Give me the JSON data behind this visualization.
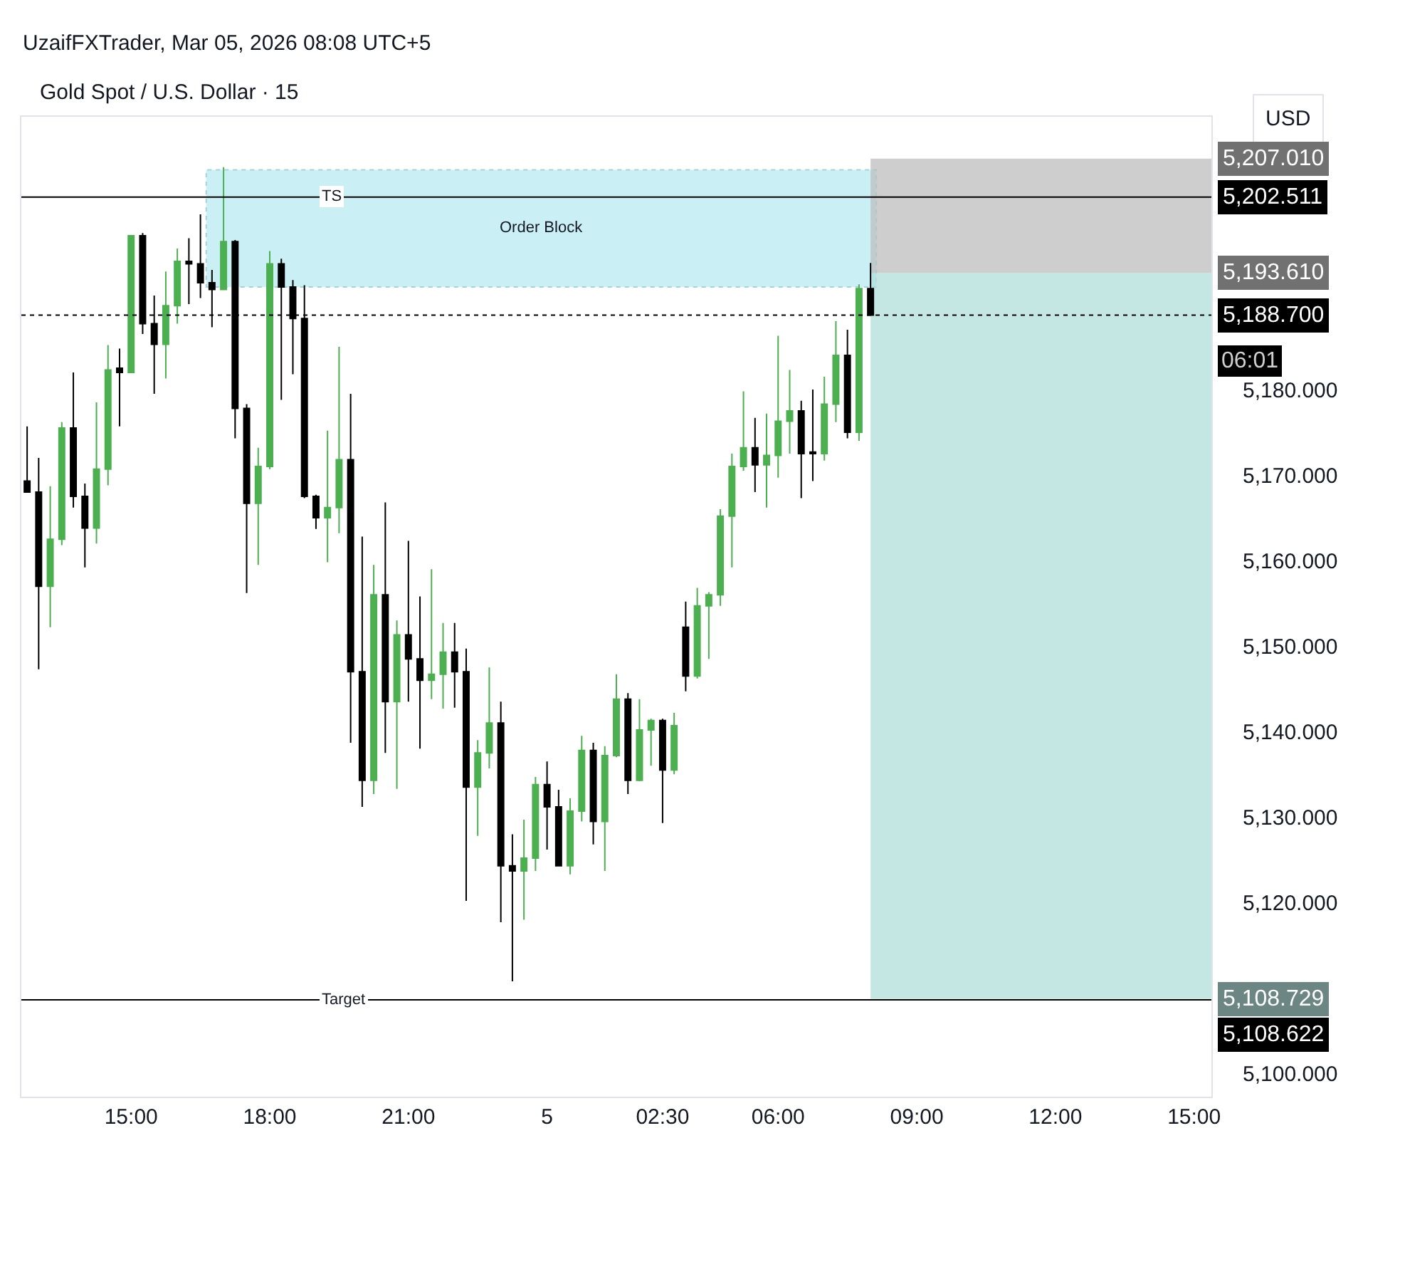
{
  "chart_data": {
    "type": "candlestick",
    "title": "Gold Spot / U.S. Dollar · 15",
    "annotations": [
      "UzaifFXTrader, Mar 05, 2026 08:08 UTC+5",
      "USD",
      "06:01",
      "5,207.010",
      "5,202.511",
      "5,193.610",
      "5,188.700",
      "5,108.729",
      "5,108.622"
    ],
    "categories": [
      null,
      null,
      null,
      null,
      null,
      null,
      null,
      null,
      null,
      "15:00",
      null,
      null,
      null,
      null,
      null,
      null,
      null,
      null,
      null,
      null,
      null,
      "18:00",
      null,
      null,
      null,
      null,
      null,
      null,
      null,
      null,
      null,
      null,
      null,
      "21:00",
      null,
      null,
      null,
      null,
      null,
      null,
      null,
      null,
      null,
      null,
      null,
      "5",
      null,
      null,
      null,
      null,
      null,
      null,
      null,
      null,
      null,
      "02:30",
      null,
      null,
      null,
      null,
      null,
      null,
      null,
      null,
      null,
      "06:00",
      null,
      null,
      null,
      null,
      null,
      null,
      null,
      null,
      null,
      null,
      null,
      "09:00",
      null,
      null,
      null,
      null,
      null,
      null,
      null,
      null,
      null,
      null,
      null,
      "12:00",
      null,
      null,
      null,
      null,
      null,
      null,
      null,
      null,
      null,
      null,
      null,
      "15:00",
      null
    ],
    "series": [
      {
        "color": "#4caf50",
        "ohlc": [
          null,
          null,
          [
            5157,
            5168.7,
            5152.2,
            5162.5
          ],
          [
            5162.5,
            5176.2,
            5161.8,
            5175.5
          ],
          null,
          null,
          [
            5163.8,
            5178.5,
            5162,
            5170.7
          ],
          [
            5170.7,
            5185.2,
            5168.8,
            5182.3
          ],
          null,
          [
            5182,
            5198,
            5182,
            5198
          ],
          null,
          null,
          [
            5185.3,
            5193.8,
            5181.3,
            5189.8
          ],
          [
            5189.8,
            5196.5,
            5187.7,
            5195
          ],
          null,
          null,
          null,
          [
            5191.7,
            5206,
            5191.7,
            5197.3
          ],
          null,
          null,
          [
            5166.7,
            5173.2,
            5159.5,
            5171
          ],
          [
            5171,
            5196.2,
            5170.7,
            5194.7
          ],
          null,
          null,
          null,
          null,
          [
            5165,
            5175.2,
            5159.8,
            5166.2
          ],
          [
            5166.2,
            5185,
            5163.2,
            5171.8
          ],
          null,
          null,
          [
            5134.3,
            5159.5,
            5132.7,
            5156
          ],
          null,
          [
            5143.5,
            5153,
            5133.3,
            5151.3
          ],
          null,
          null,
          [
            5146,
            5159,
            5143.8,
            5146.7
          ],
          [
            5146.7,
            5152.7,
            5142.7,
            5149.3
          ],
          null,
          null,
          [
            5133.5,
            5139,
            5127.8,
            5137.5
          ],
          [
            5137.5,
            5147.5,
            5135.7,
            5141
          ],
          null,
          null,
          [
            5123.7,
            5129.7,
            5118,
            5125.2
          ],
          [
            5125.2,
            5134.7,
            5123.7,
            5133.8
          ],
          null,
          null,
          [
            5124.3,
            5132.2,
            5123.3,
            5130.7
          ],
          [
            5130.7,
            5139.5,
            5129.5,
            5137.8
          ],
          null,
          [
            5129.5,
            5138.3,
            5123.7,
            5137.2
          ],
          [
            5137.2,
            5146.7,
            5137,
            5143.8
          ],
          null,
          [
            5134.3,
            5143.8,
            5134.2,
            5140.2
          ],
          [
            5140.2,
            5141.5,
            5136,
            5141.3
          ],
          null,
          [
            5135.5,
            5142.2,
            5135,
            5140.7
          ],
          null,
          [
            5146.5,
            5156.8,
            5146.2,
            5154.7
          ],
          [
            5154.7,
            5156.3,
            5148.5,
            5156
          ],
          [
            5156,
            5166,
            5154.7,
            5165.2
          ],
          [
            5165.2,
            5172.5,
            5159.2,
            5171
          ],
          [
            5171,
            5179.8,
            5170.5,
            5173.2
          ],
          null,
          [
            5171.2,
            5177.2,
            5166.2,
            5172.3
          ],
          [
            5172.3,
            5186.3,
            5169.7,
            5176.3
          ],
          [
            5176.3,
            5182.3,
            5172.5,
            5177.5
          ],
          null,
          null,
          [
            5172.5,
            5181.5,
            5171.7,
            5178.3
          ],
          [
            5178.3,
            5188,
            5176.2,
            5184
          ],
          null,
          [
            5175,
            5192.3,
            5174,
            5191.8
          ],
          null,
          null,
          null,
          null,
          null,
          null,
          null,
          null,
          null,
          null,
          null,
          null,
          null,
          null,
          null,
          null,
          null,
          null,
          null,
          null,
          null,
          null,
          null,
          null,
          null,
          null,
          null,
          null,
          null,
          null
        ]
      },
      {
        "color": "#000000",
        "ohlc": [
          [
            5169.3,
            5175.7,
            5168,
            5168
          ],
          [
            5168,
            5172,
            5147.3,
            5157
          ],
          null,
          null,
          [
            5175.5,
            5182,
            5166.2,
            5167.5
          ],
          [
            5167.5,
            5169,
            5159.2,
            5163.8
          ],
          null,
          null,
          [
            5182.5,
            5184.8,
            5175.7,
            5182
          ],
          null,
          [
            5198,
            5198.3,
            5186.5,
            5187.7
          ],
          [
            5187.7,
            5191,
            5179.5,
            5185.3
          ],
          null,
          null,
          [
            5195,
            5197.7,
            5190,
            5194.7
          ],
          [
            5194.7,
            5200.5,
            5190.7,
            5192.5
          ],
          [
            5192.5,
            5194,
            5187.3,
            5191.7
          ],
          null,
          [
            5197.3,
            5197.5,
            5174.3,
            5177.8
          ],
          [
            5177.8,
            5178.3,
            5156.2,
            5166.7
          ],
          null,
          null,
          [
            5194.7,
            5195.3,
            5178.8,
            5192
          ],
          [
            5192,
            5192.8,
            5181.8,
            5188.3
          ],
          [
            5188.3,
            5192.2,
            5167.3,
            5167.5
          ],
          [
            5167.5,
            5167.7,
            5163.7,
            5165
          ],
          null,
          null,
          [
            5171.8,
            5179.5,
            5138.7,
            5147
          ],
          [
            5147,
            5162.8,
            5131.2,
            5134.3
          ],
          null,
          [
            5156,
            5166.8,
            5137.5,
            5143.5
          ],
          null,
          [
            5151.3,
            5162.3,
            5143.5,
            5148.5
          ],
          [
            5148.5,
            5155.8,
            5138,
            5146
          ],
          null,
          null,
          [
            5149.3,
            5152.7,
            5142.8,
            5147
          ],
          [
            5147,
            5149.7,
            5120.2,
            5133.5
          ],
          null,
          null,
          [
            5141,
            5143.5,
            5117.7,
            5124.3
          ],
          [
            5124.3,
            5128,
            5110.8,
            5123.7
          ],
          null,
          null,
          [
            5133.8,
            5136.5,
            5126.2,
            5131.2
          ],
          [
            5131.2,
            5133.2,
            5124.3,
            5124.3
          ],
          null,
          null,
          [
            5137.8,
            5138.7,
            5126.8,
            5129.5
          ],
          null,
          null,
          [
            5143.8,
            5144.5,
            5132.7,
            5134.3
          ],
          null,
          null,
          [
            5141.3,
            5141.5,
            5129.3,
            5135.5
          ],
          null,
          [
            5152.2,
            5155.2,
            5144.7,
            5146.5
          ],
          null,
          null,
          null,
          null,
          null,
          [
            5173.2,
            5176.7,
            5168,
            5171.2
          ],
          null,
          null,
          null,
          [
            5177.5,
            5178.7,
            5167.3,
            5172.5
          ],
          [
            5172.7,
            5180,
            5169.3,
            5172.5
          ],
          null,
          null,
          [
            5184,
            5187,
            5174.3,
            5175
          ],
          null,
          [
            5191.8,
            5194.8,
            5188.7,
            5188.7
          ],
          null,
          null,
          null,
          null,
          null,
          null,
          null,
          null,
          null,
          null,
          null,
          null,
          null,
          null,
          null,
          null,
          null,
          null,
          null,
          null,
          null,
          null,
          null,
          null,
          null,
          null,
          null,
          null,
          null
        ]
      }
    ],
    "ylim": [
      5097.3,
      5211.9
    ],
    "yticks": [
      {
        "value": 5100,
        "label": "5,100.000"
      },
      {
        "value": 5120,
        "label": "5,120.000"
      },
      {
        "value": 5130,
        "label": "5,130.000"
      },
      {
        "value": 5140,
        "label": "5,140.000"
      },
      {
        "value": 5150,
        "label": "5,150.000"
      },
      {
        "value": 5160,
        "label": "5,160.000"
      },
      {
        "value": 5170,
        "label": "5,170.000"
      },
      {
        "value": 5180,
        "label": "5,180.000"
      }
    ],
    "bands": [
      {
        "axis": "y",
        "from": 5192,
        "to": 5205.7,
        "label": "Order Block",
        "color": "#c5eef5"
      },
      {
        "axis": "y",
        "from": 5193.61,
        "to": 5207.01,
        "color": "#bdbdbd"
      },
      {
        "axis": "y",
        "from": 5108.729,
        "to": 5193.61,
        "color": "#b2dfdb"
      }
    ],
    "ref_lines": [
      {
        "axis": "y",
        "value": 5202.511,
        "label": "TS",
        "color": "#000000",
        "line_style": "solid"
      },
      {
        "axis": "y",
        "value": 5188.7,
        "color": "#000000",
        "line_style": "dotted"
      },
      {
        "axis": "y",
        "value": 5108.622,
        "label": "Target",
        "color": "#000000",
        "line_style": "solid"
      }
    ]
  }
}
